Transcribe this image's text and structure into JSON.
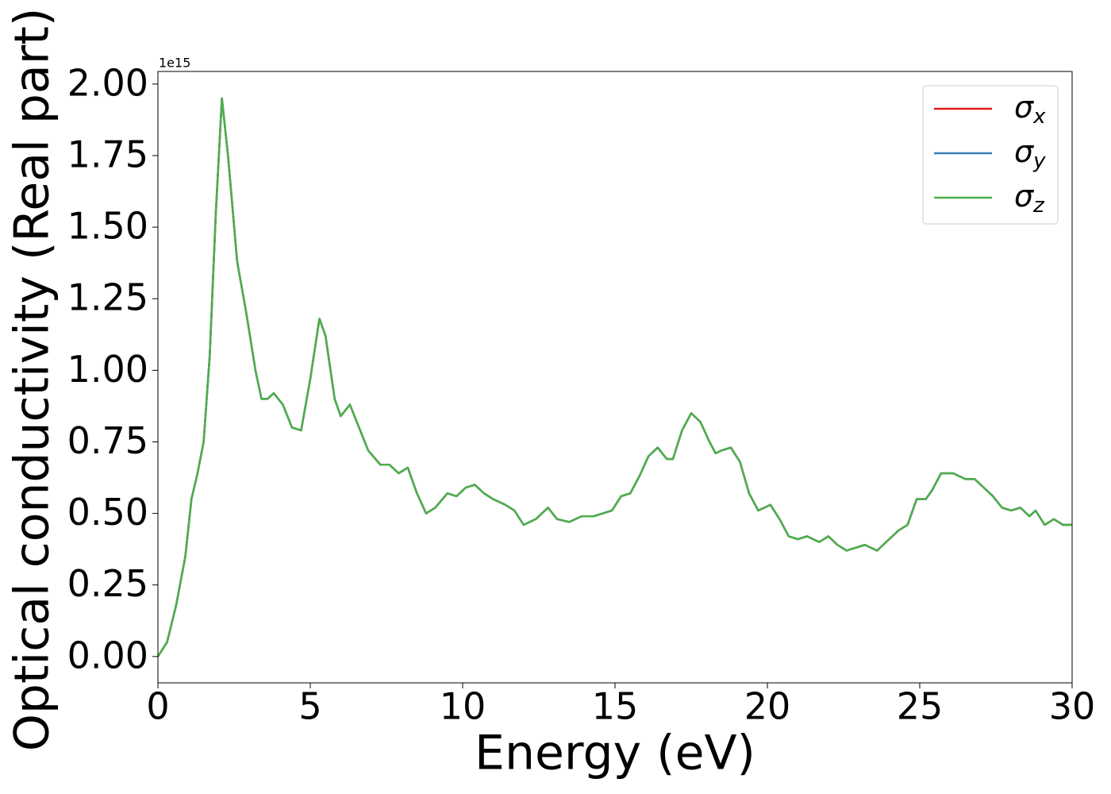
{
  "chart_data": {
    "type": "line",
    "xlabel": "Energy (eV)",
    "ylabel": "Optical conductivity (Real part)",
    "y_offset_label": "1e15",
    "x": [
      0,
      0.3,
      0.6,
      0.9,
      1.1,
      1.3,
      1.5,
      1.7,
      1.9,
      2.1,
      2.3,
      2.6,
      2.9,
      3.2,
      3.4,
      3.6,
      3.8,
      4.1,
      4.4,
      4.7,
      5.0,
      5.3,
      5.5,
      5.8,
      6.0,
      6.3,
      6.6,
      6.9,
      7.3,
      7.6,
      7.9,
      8.2,
      8.5,
      8.8,
      9.1,
      9.5,
      9.8,
      10.1,
      10.4,
      10.7,
      11.0,
      11.4,
      11.7,
      12.0,
      12.4,
      12.8,
      13.1,
      13.5,
      13.9,
      14.3,
      14.6,
      14.9,
      15.2,
      15.5,
      15.8,
      16.1,
      16.4,
      16.7,
      16.9,
      17.2,
      17.5,
      17.8,
      18.1,
      18.3,
      18.5,
      18.8,
      19.1,
      19.4,
      19.7,
      20.1,
      20.4,
      20.7,
      21.0,
      21.3,
      21.7,
      22.0,
      22.3,
      22.6,
      22.9,
      23.2,
      23.6,
      23.9,
      24.3,
      24.6,
      24.9,
      25.2,
      25.4,
      25.7,
      26.1,
      26.5,
      26.8,
      27.1,
      27.4,
      27.7,
      28.0,
      28.3,
      28.6,
      28.8,
      29.1,
      29.4,
      29.7,
      30.0
    ],
    "series": [
      {
        "name": "σx",
        "color": "#e41a1c",
        "values": [
          0,
          0.05,
          0.18,
          0.35,
          0.55,
          0.64,
          0.75,
          1.05,
          1.55,
          1.95,
          1.75,
          1.38,
          1.2,
          1.0,
          0.9,
          0.9,
          0.92,
          0.88,
          0.8,
          0.79,
          0.97,
          1.18,
          1.12,
          0.9,
          0.84,
          0.88,
          0.8,
          0.72,
          0.67,
          0.67,
          0.64,
          0.66,
          0.57,
          0.5,
          0.52,
          0.57,
          0.56,
          0.59,
          0.6,
          0.57,
          0.55,
          0.53,
          0.51,
          0.46,
          0.48,
          0.52,
          0.48,
          0.47,
          0.49,
          0.49,
          0.5,
          0.51,
          0.56,
          0.57,
          0.63,
          0.7,
          0.73,
          0.69,
          0.69,
          0.79,
          0.85,
          0.82,
          0.75,
          0.71,
          0.72,
          0.73,
          0.68,
          0.57,
          0.51,
          0.53,
          0.48,
          0.42,
          0.41,
          0.42,
          0.4,
          0.42,
          0.39,
          0.37,
          0.38,
          0.39,
          0.37,
          0.4,
          0.44,
          0.46,
          0.55,
          0.55,
          0.58,
          0.64,
          0.64,
          0.62,
          0.62,
          0.59,
          0.56,
          0.52,
          0.51,
          0.52,
          0.49,
          0.51,
          0.46,
          0.48,
          0.46,
          0.46
        ]
      },
      {
        "name": "σy",
        "color": "#377eb8",
        "values": [
          0,
          0.05,
          0.18,
          0.35,
          0.55,
          0.64,
          0.75,
          1.05,
          1.55,
          1.95,
          1.75,
          1.38,
          1.2,
          1.0,
          0.9,
          0.9,
          0.92,
          0.88,
          0.8,
          0.79,
          0.97,
          1.18,
          1.12,
          0.9,
          0.84,
          0.88,
          0.8,
          0.72,
          0.67,
          0.67,
          0.64,
          0.66,
          0.57,
          0.5,
          0.52,
          0.57,
          0.56,
          0.59,
          0.6,
          0.57,
          0.55,
          0.53,
          0.51,
          0.46,
          0.48,
          0.52,
          0.48,
          0.47,
          0.49,
          0.49,
          0.5,
          0.51,
          0.56,
          0.57,
          0.63,
          0.7,
          0.73,
          0.69,
          0.69,
          0.79,
          0.85,
          0.82,
          0.75,
          0.71,
          0.72,
          0.73,
          0.68,
          0.57,
          0.51,
          0.53,
          0.48,
          0.42,
          0.41,
          0.42,
          0.4,
          0.42,
          0.39,
          0.37,
          0.38,
          0.39,
          0.37,
          0.4,
          0.44,
          0.46,
          0.55,
          0.55,
          0.58,
          0.64,
          0.64,
          0.62,
          0.62,
          0.59,
          0.56,
          0.52,
          0.51,
          0.52,
          0.49,
          0.51,
          0.46,
          0.48,
          0.46,
          0.46
        ]
      },
      {
        "name": "σz",
        "color": "#4daf4a",
        "values": [
          0,
          0.05,
          0.18,
          0.35,
          0.55,
          0.64,
          0.75,
          1.05,
          1.55,
          1.95,
          1.75,
          1.38,
          1.2,
          1.0,
          0.9,
          0.9,
          0.92,
          0.88,
          0.8,
          0.79,
          0.97,
          1.18,
          1.12,
          0.9,
          0.84,
          0.88,
          0.8,
          0.72,
          0.67,
          0.67,
          0.64,
          0.66,
          0.57,
          0.5,
          0.52,
          0.57,
          0.56,
          0.59,
          0.6,
          0.57,
          0.55,
          0.53,
          0.51,
          0.46,
          0.48,
          0.52,
          0.48,
          0.47,
          0.49,
          0.49,
          0.5,
          0.51,
          0.56,
          0.57,
          0.63,
          0.7,
          0.73,
          0.69,
          0.69,
          0.79,
          0.85,
          0.82,
          0.75,
          0.71,
          0.72,
          0.73,
          0.68,
          0.57,
          0.51,
          0.53,
          0.48,
          0.42,
          0.41,
          0.42,
          0.4,
          0.42,
          0.39,
          0.37,
          0.38,
          0.39,
          0.37,
          0.4,
          0.44,
          0.46,
          0.55,
          0.55,
          0.58,
          0.64,
          0.64,
          0.62,
          0.62,
          0.59,
          0.56,
          0.52,
          0.51,
          0.52,
          0.49,
          0.51,
          0.46,
          0.48,
          0.46,
          0.46
        ]
      }
    ],
    "xlim": [
      0,
      30
    ],
    "xticks": [
      0,
      5,
      10,
      15,
      20,
      25,
      30
    ],
    "ylim": [
      -0.092,
      2.044
    ],
    "yticks": [
      {
        "value": 0,
        "label": "0.00"
      },
      0.25,
      {
        "value": 0.5,
        "label": "0.50"
      },
      0.75,
      {
        "value": 1,
        "label": "1.00"
      },
      1.25,
      {
        "value": 1.5,
        "label": "1.50"
      },
      1.75,
      {
        "value": 2,
        "label": "2.00"
      }
    ],
    "legend": "upper right",
    "grid": false
  }
}
